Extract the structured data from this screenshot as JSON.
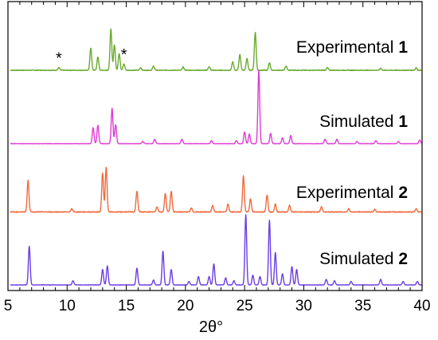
{
  "chart_data": {
    "type": "line",
    "xlabel": "2θ°",
    "xlim": [
      5,
      40
    ],
    "x_ticks": [
      5,
      10,
      15,
      20,
      25,
      30,
      35,
      40
    ],
    "y_ticks_shown": false,
    "grid": false,
    "series": [
      {
        "name": "Experimental",
        "number": "1",
        "color": "#6aaa2e",
        "baseline_offset": 0.03,
        "peaks": [
          {
            "x": 9.3,
            "h": 0.05
          },
          {
            "x": 12.0,
            "h": 0.42
          },
          {
            "x": 12.6,
            "h": 0.25
          },
          {
            "x": 13.7,
            "h": 0.78
          },
          {
            "x": 14.0,
            "h": 0.48
          },
          {
            "x": 14.4,
            "h": 0.32
          },
          {
            "x": 14.8,
            "h": 0.12
          },
          {
            "x": 16.2,
            "h": 0.05
          },
          {
            "x": 17.3,
            "h": 0.08
          },
          {
            "x": 19.8,
            "h": 0.06
          },
          {
            "x": 22.0,
            "h": 0.07
          },
          {
            "x": 24.0,
            "h": 0.16
          },
          {
            "x": 24.6,
            "h": 0.3
          },
          {
            "x": 25.2,
            "h": 0.22
          },
          {
            "x": 25.9,
            "h": 0.72
          },
          {
            "x": 27.1,
            "h": 0.14
          },
          {
            "x": 28.5,
            "h": 0.08
          },
          {
            "x": 32.0,
            "h": 0.05
          },
          {
            "x": 36.5,
            "h": 0.04
          },
          {
            "x": 39.5,
            "h": 0.05
          }
        ],
        "annotations": [
          {
            "text": "*",
            "x": 9.3
          },
          {
            "text": "*",
            "x": 14.8
          }
        ]
      },
      {
        "name": "Simulated",
        "number": "1",
        "color": "#e03ad6",
        "baseline_offset": 0.0,
        "peaks": [
          {
            "x": 12.2,
            "h": 0.22
          },
          {
            "x": 12.6,
            "h": 0.25
          },
          {
            "x": 13.8,
            "h": 0.48
          },
          {
            "x": 14.1,
            "h": 0.26
          },
          {
            "x": 16.4,
            "h": 0.03
          },
          {
            "x": 17.4,
            "h": 0.06
          },
          {
            "x": 19.7,
            "h": 0.06
          },
          {
            "x": 22.2,
            "h": 0.04
          },
          {
            "x": 24.3,
            "h": 0.04
          },
          {
            "x": 25.0,
            "h": 0.16
          },
          {
            "x": 25.4,
            "h": 0.13
          },
          {
            "x": 26.2,
            "h": 1.0
          },
          {
            "x": 27.2,
            "h": 0.14
          },
          {
            "x": 28.2,
            "h": 0.08
          },
          {
            "x": 28.9,
            "h": 0.11
          },
          {
            "x": 31.8,
            "h": 0.06
          },
          {
            "x": 32.8,
            "h": 0.06
          },
          {
            "x": 34.5,
            "h": 0.03
          },
          {
            "x": 36.1,
            "h": 0.04
          },
          {
            "x": 38.0,
            "h": 0.03
          },
          {
            "x": 39.8,
            "h": 0.05
          }
        ]
      },
      {
        "name": "Experimental",
        "number": "2",
        "color": "#f06a3c",
        "baseline_offset": 0.03,
        "peaks": [
          {
            "x": 6.7,
            "h": 0.48
          },
          {
            "x": 10.4,
            "h": 0.05
          },
          {
            "x": 13.0,
            "h": 0.6
          },
          {
            "x": 13.3,
            "h": 0.68
          },
          {
            "x": 15.9,
            "h": 0.32
          },
          {
            "x": 17.6,
            "h": 0.08
          },
          {
            "x": 18.3,
            "h": 0.28
          },
          {
            "x": 18.8,
            "h": 0.32
          },
          {
            "x": 20.5,
            "h": 0.06
          },
          {
            "x": 22.3,
            "h": 0.1
          },
          {
            "x": 23.6,
            "h": 0.12
          },
          {
            "x": 24.9,
            "h": 0.55
          },
          {
            "x": 25.5,
            "h": 0.2
          },
          {
            "x": 26.9,
            "h": 0.26
          },
          {
            "x": 27.6,
            "h": 0.12
          },
          {
            "x": 28.8,
            "h": 0.1
          },
          {
            "x": 31.5,
            "h": 0.08
          },
          {
            "x": 33.8,
            "h": 0.05
          },
          {
            "x": 36.0,
            "h": 0.04
          },
          {
            "x": 39.5,
            "h": 0.05
          }
        ]
      },
      {
        "name": "Simulated",
        "number": "2",
        "color": "#6a3de6",
        "baseline_offset": 0.0,
        "peaks": [
          {
            "x": 6.8,
            "h": 0.55
          },
          {
            "x": 10.5,
            "h": 0.06
          },
          {
            "x": 13.0,
            "h": 0.22
          },
          {
            "x": 13.4,
            "h": 0.27
          },
          {
            "x": 15.9,
            "h": 0.24
          },
          {
            "x": 17.3,
            "h": 0.07
          },
          {
            "x": 18.1,
            "h": 0.48
          },
          {
            "x": 18.8,
            "h": 0.22
          },
          {
            "x": 20.3,
            "h": 0.05
          },
          {
            "x": 21.1,
            "h": 0.12
          },
          {
            "x": 22.0,
            "h": 0.12
          },
          {
            "x": 22.4,
            "h": 0.3
          },
          {
            "x": 23.4,
            "h": 0.1
          },
          {
            "x": 24.1,
            "h": 0.06
          },
          {
            "x": 25.1,
            "h": 1.0
          },
          {
            "x": 25.7,
            "h": 0.14
          },
          {
            "x": 26.3,
            "h": 0.12
          },
          {
            "x": 27.1,
            "h": 0.92
          },
          {
            "x": 27.6,
            "h": 0.46
          },
          {
            "x": 28.2,
            "h": 0.16
          },
          {
            "x": 29.0,
            "h": 0.26
          },
          {
            "x": 29.4,
            "h": 0.22
          },
          {
            "x": 31.9,
            "h": 0.08
          },
          {
            "x": 32.6,
            "h": 0.06
          },
          {
            "x": 34.0,
            "h": 0.05
          },
          {
            "x": 36.5,
            "h": 0.08
          },
          {
            "x": 38.4,
            "h": 0.05
          },
          {
            "x": 39.6,
            "h": 0.05
          }
        ]
      }
    ]
  }
}
